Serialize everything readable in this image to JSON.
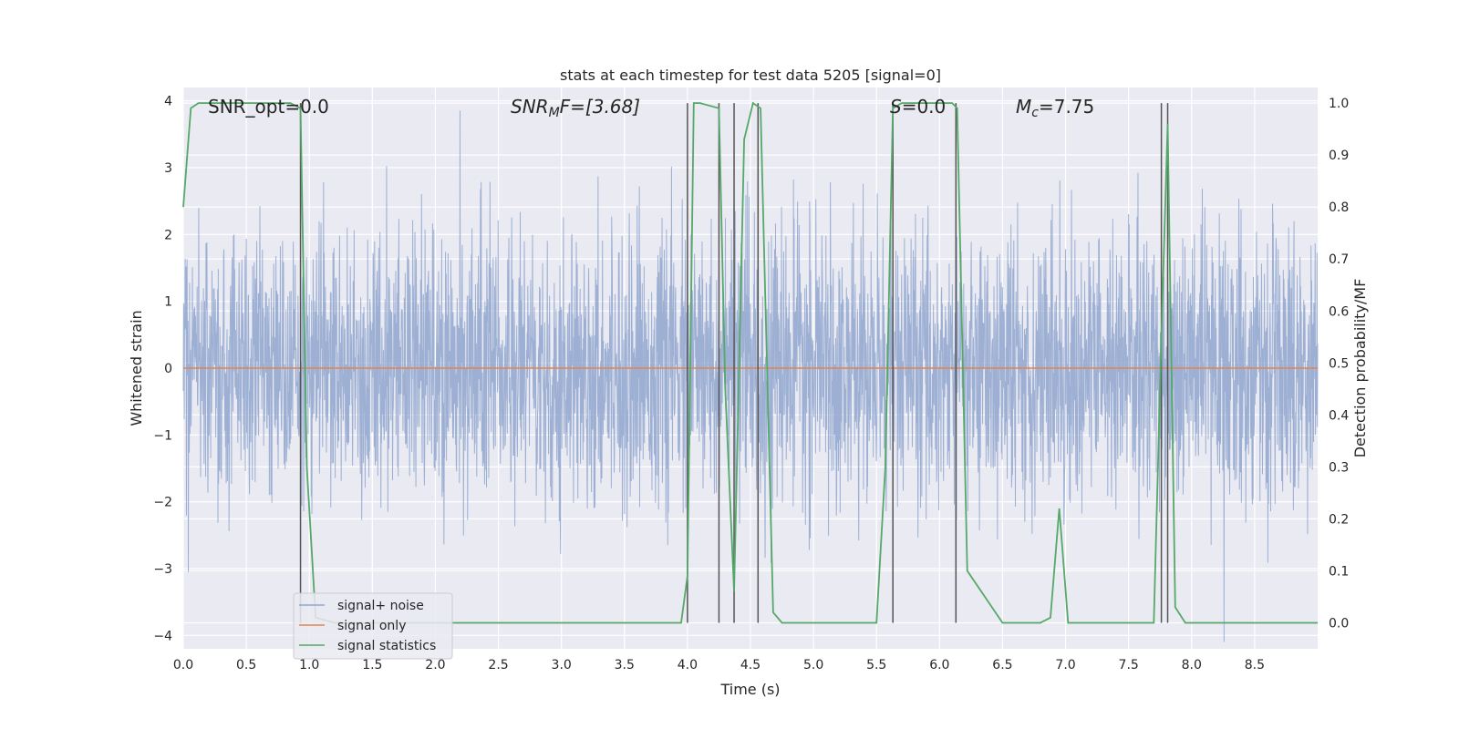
{
  "chart_data": {
    "type": "line",
    "title": "stats at each timestep for test data 5205 [signal=0]",
    "xlabel": "Time (s)",
    "ylabel": "Whitened strain",
    "y2label": "Detection probability/MF",
    "xlim": [
      0.0,
      9.0
    ],
    "ylim": [
      -4.2,
      4.2
    ],
    "y2lim": [
      -0.05,
      1.03
    ],
    "xticks": [
      "0.0",
      "0.5",
      "1.0",
      "1.5",
      "2.0",
      "2.5",
      "3.0",
      "3.5",
      "4.0",
      "4.5",
      "5.0",
      "5.5",
      "6.0",
      "6.5",
      "7.0",
      "7.5",
      "8.0",
      "8.5"
    ],
    "yticks": [
      "4",
      "3",
      "2",
      "1",
      "0",
      "−1",
      "−2",
      "−3",
      "−4"
    ],
    "y2ticks": [
      "1.0",
      "0.9",
      "0.8",
      "0.7",
      "0.6",
      "0.5",
      "0.4",
      "0.3",
      "0.2",
      "0.1",
      "0.0"
    ],
    "grid": true,
    "legend_placement": "lower-left",
    "annotations": {
      "snr_opt": "SNR_opt=0.0",
      "snr_mf": "SNR",
      "snr_mf_sub": "M",
      "snr_mf_tail": "F=[3.68]",
      "s": "S",
      "s_tail": "=0.0",
      "mc": "M",
      "mc_sub": "c",
      "mc_tail": "=7.75"
    },
    "series": [
      {
        "name": "signal+ noise",
        "color": "#8fa6cf",
        "description_values": "white noise",
        "std": 1.0,
        "t_range": [
          0.0,
          9.0
        ]
      },
      {
        "name": "signal only",
        "color": "#dd8452",
        "x": [
          0.0,
          9.0
        ],
        "values": [
          0.0,
          0.0
        ]
      },
      {
        "name": "signal statistics",
        "color": "#55a868",
        "x": [
          0.0,
          0.06,
          0.12,
          0.5,
          0.85,
          0.93,
          0.98,
          1.05,
          1.2,
          2.0,
          3.0,
          3.95,
          4.0,
          4.05,
          4.1,
          4.25,
          4.3,
          4.37,
          4.45,
          4.52,
          4.58,
          4.68,
          4.75,
          5.0,
          5.5,
          5.57,
          5.63,
          5.7,
          6.1,
          6.14,
          6.22,
          6.5,
          6.8,
          6.88,
          6.95,
          7.02,
          7.5,
          7.7,
          7.76,
          7.81,
          7.87,
          7.95,
          8.5,
          9.0
        ],
        "values": [
          0.8,
          0.99,
          1.0,
          1.0,
          1.0,
          0.99,
          0.3,
          0.01,
          0.0,
          0.0,
          0.0,
          0.0,
          0.09,
          1.0,
          1.0,
          0.99,
          0.45,
          0.06,
          0.93,
          1.0,
          0.99,
          0.02,
          0.0,
          0.0,
          0.0,
          0.3,
          0.99,
          1.0,
          1.0,
          0.99,
          0.1,
          0.0,
          0.0,
          0.01,
          0.22,
          0.0,
          0.0,
          0.0,
          0.55,
          0.96,
          0.03,
          0.0,
          0.0,
          0.0
        ]
      }
    ],
    "vlines": {
      "color": "#555555",
      "x": [
        0.93,
        4.0,
        4.25,
        4.37,
        4.56,
        5.63,
        6.13,
        7.76,
        7.81
      ]
    },
    "legend": [
      "signal+ noise",
      "signal only",
      "signal statistics"
    ]
  }
}
